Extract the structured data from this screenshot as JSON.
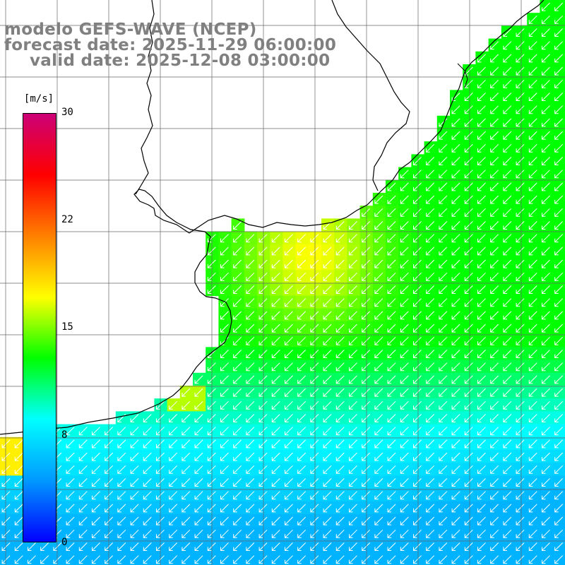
{
  "title": {
    "line1": "modelo GEFS-WAVE (NCEP)",
    "line2": "forecast date: 2025-11-29 06:00:00",
    "line3": "valid date: 2025-12-08 03:00:00"
  },
  "colorbar": {
    "units": "[m/s]",
    "ticks": [
      "30",
      "22",
      "15",
      "8",
      "0"
    ],
    "tick_values": [
      30,
      22,
      15,
      8,
      0
    ],
    "min": 0,
    "max": 30,
    "colors": [
      "#0000ff",
      "#0099ff",
      "#00ffff",
      "#00ff00",
      "#ffff00",
      "#ff8000",
      "#ff0000",
      "#cc0077"
    ]
  },
  "map": {
    "variable": "wind speed",
    "land_color": "#ffffff",
    "coast_color": "#000000",
    "grid_color": "#707070",
    "arrow_color": "#ffffff",
    "arrow_direction": "toward south-west"
  }
}
